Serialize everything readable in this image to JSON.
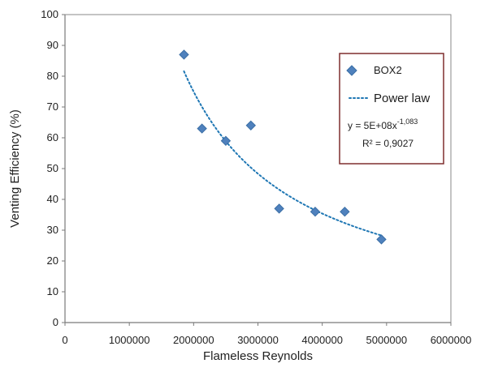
{
  "chart_data": {
    "type": "scatter",
    "title": "",
    "xlabel": "Flameless Reynolds",
    "ylabel": "Venting Efficiency (%)",
    "xlim": [
      0,
      6000000
    ],
    "ylim": [
      0,
      100
    ],
    "x_ticks": [
      0,
      1000000,
      2000000,
      3000000,
      4000000,
      5000000,
      6000000
    ],
    "y_ticks": [
      0,
      10,
      20,
      30,
      40,
      50,
      60,
      70,
      80,
      90,
      100
    ],
    "x_tick_labels": [
      "0",
      "1000000",
      "2000000",
      "3000000",
      "4000000",
      "5000000",
      "6000000"
    ],
    "y_tick_labels": [
      "0",
      "10",
      "20",
      "30",
      "40",
      "50",
      "60",
      "70",
      "80",
      "90",
      "100"
    ],
    "grid": true,
    "series": [
      {
        "name": "BOX2",
        "marker": "diamond",
        "color": "#4f81bd",
        "points": [
          {
            "x": 1850000,
            "y": 87
          },
          {
            "x": 2130000,
            "y": 63
          },
          {
            "x": 2500000,
            "y": 59
          },
          {
            "x": 2890000,
            "y": 64
          },
          {
            "x": 3330000,
            "y": 37
          },
          {
            "x": 3890000,
            "y": 36
          },
          {
            "x": 4350000,
            "y": 36
          },
          {
            "x": 4920000,
            "y": 27
          }
        ]
      }
    ],
    "trendline": {
      "name": "Power law",
      "type": "power",
      "color": "#1f77b4",
      "dash": "dotted",
      "coefficient": 500000000,
      "exponent": -1.083,
      "x_range": [
        1850000,
        4920000
      ]
    },
    "legend": {
      "position": "right",
      "entries": [
        "BOX2",
        "Power law"
      ],
      "equation": {
        "prefix": "y = 5E+08x",
        "exponent": "-1,083"
      },
      "r_squared": "R² = 0,9027"
    }
  }
}
